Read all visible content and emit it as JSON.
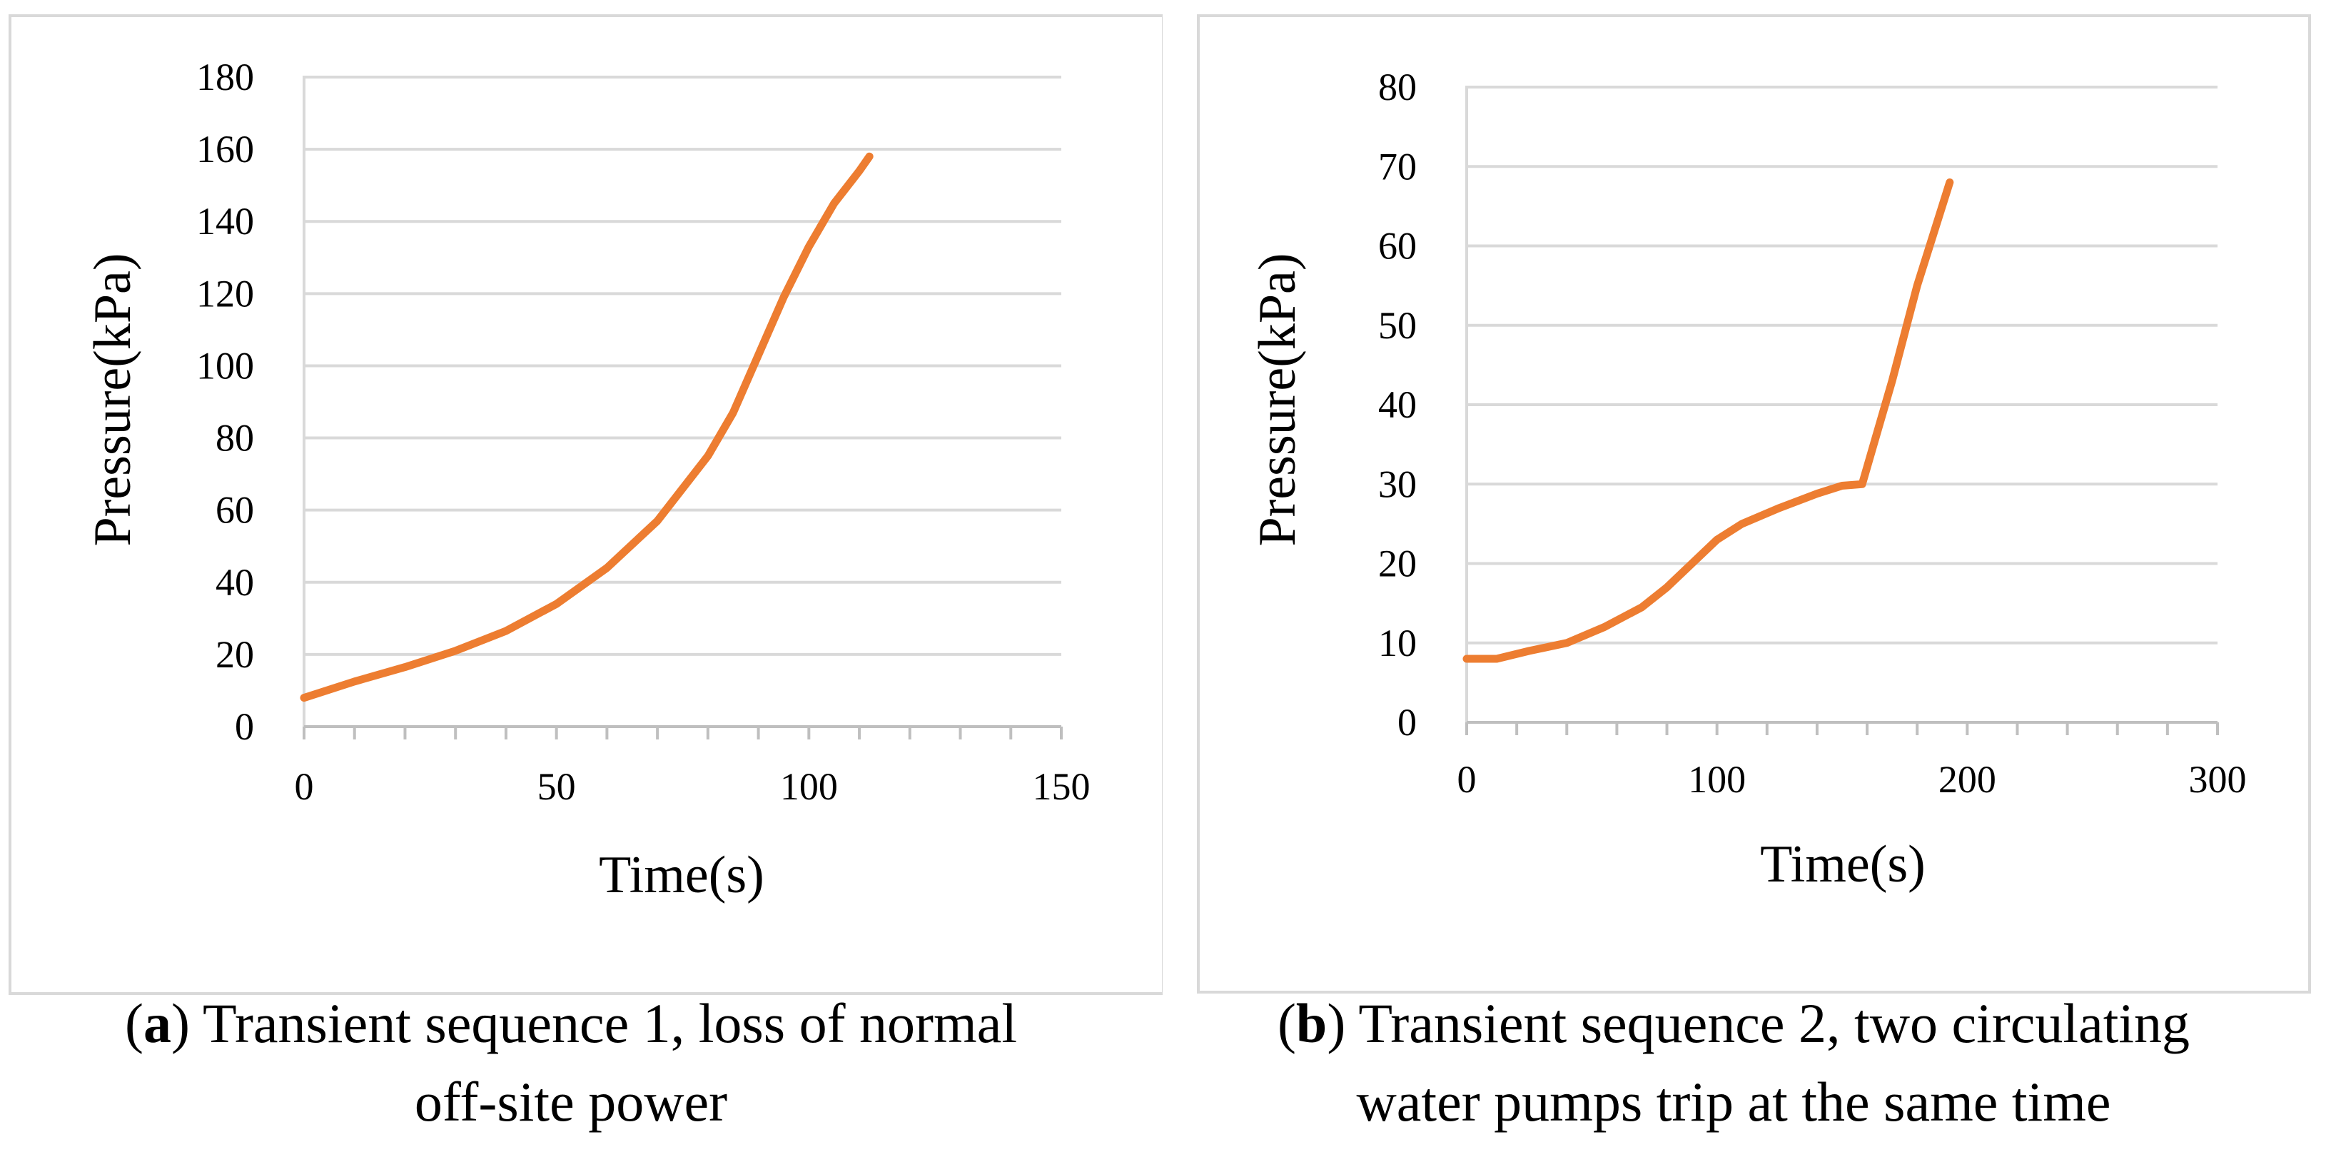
{
  "chart_data": [
    {
      "type": "line",
      "id": "a",
      "title": "",
      "xlabel": "Time(s)",
      "ylabel": "Pressure(kPa)",
      "xlim": [
        0,
        150
      ],
      "ylim": [
        0,
        180
      ],
      "xticks": [
        0,
        50,
        100,
        150
      ],
      "yticks": [
        0,
        20,
        40,
        60,
        80,
        100,
        120,
        140,
        160,
        180
      ],
      "grid": true,
      "series_color": "#ED7D31",
      "series": [
        {
          "name": "Pressure",
          "x": [
            0,
            10,
            20,
            30,
            40,
            50,
            60,
            70,
            75,
            80,
            85,
            90,
            95,
            100,
            105,
            110,
            112
          ],
          "y": [
            8,
            12.5,
            16.5,
            21,
            26.5,
            34,
            44,
            57,
            66,
            75,
            87,
            103,
            119,
            133,
            145,
            154,
            158
          ]
        }
      ],
      "caption_letter": "a",
      "caption_text": ") Transient sequence 1, loss of normal",
      "caption_line2": "off-site power"
    },
    {
      "type": "line",
      "id": "b",
      "title": "",
      "xlabel": "Time(s)",
      "ylabel": "Pressure(kPa)",
      "xlim": [
        0,
        300
      ],
      "ylim": [
        0,
        80
      ],
      "xticks": [
        0,
        100,
        200,
        300
      ],
      "yticks": [
        0,
        10,
        20,
        30,
        40,
        50,
        60,
        70,
        80
      ],
      "grid": true,
      "series_color": "#ED7D31",
      "series": [
        {
          "name": "Pressure",
          "x": [
            0,
            12,
            25,
            40,
            55,
            70,
            80,
            90,
            100,
            110,
            125,
            140,
            150,
            158,
            170,
            180,
            193
          ],
          "y": [
            8,
            8,
            9,
            10,
            12,
            14.5,
            17,
            20,
            23,
            25,
            27,
            28.8,
            29.8,
            30,
            43,
            55,
            68
          ]
        }
      ],
      "caption_letter": "b",
      "caption_text": ") Transient sequence 2, two circulating",
      "caption_line2": "water pumps trip at the same time"
    }
  ]
}
